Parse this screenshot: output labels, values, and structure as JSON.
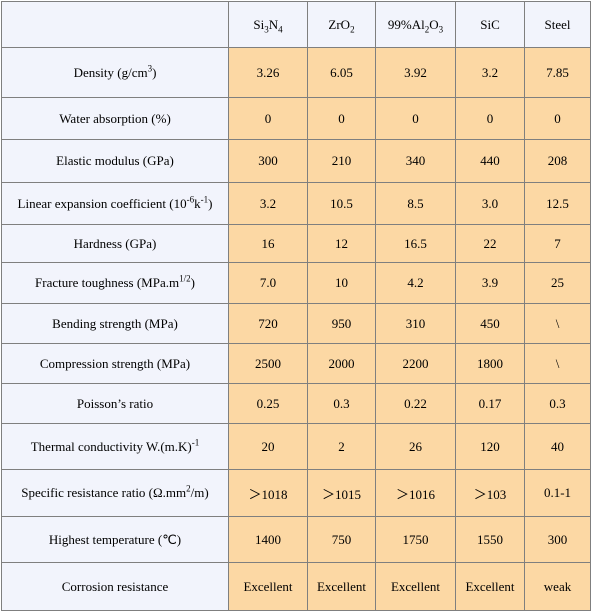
{
  "table": {
    "header": [
      [
        "Si",
        {
          "sub": "3"
        },
        "N",
        {
          "sub": "4"
        }
      ],
      [
        "ZrO",
        {
          "sub": "2"
        }
      ],
      [
        "99%Al",
        {
          "sub": "2"
        },
        "O",
        {
          "sub": "3"
        }
      ],
      "SiC",
      "Steel"
    ],
    "rows": [
      {
        "label": [
          "Density (g/cm",
          {
            "sup": "3"
          },
          ")"
        ],
        "cells": [
          "3.26",
          "6.05",
          "3.92",
          "3.2",
          "7.85"
        ]
      },
      {
        "label": "Water absorption (%)",
        "cells": [
          "0",
          "0",
          "0",
          "0",
          "0"
        ]
      },
      {
        "label": "Elastic modulus (GPa)",
        "cells": [
          "300",
          "210",
          "340",
          "440",
          "208"
        ]
      },
      {
        "label": [
          "Linear expansion coefficient (10",
          {
            "sup": "-6"
          },
          "k",
          {
            "sup": "-1"
          },
          ")"
        ],
        "cells": [
          "3.2",
          "10.5",
          "8.5",
          "3.0",
          "12.5"
        ]
      },
      {
        "label": "Hardness (GPa)",
        "cells": [
          "16",
          "12",
          "16.5",
          "22",
          "7"
        ]
      },
      {
        "label": [
          "Fracture toughness (MPa.m",
          {
            "sup": "1/2"
          },
          ")"
        ],
        "cells": [
          "7.0",
          "10",
          "4.2",
          "3.9",
          "25"
        ]
      },
      {
        "label": "Bending strength (MPa)",
        "cells": [
          "720",
          "950",
          "310",
          "450",
          "\\"
        ]
      },
      {
        "label": "Compression strength (MPa)",
        "cells": [
          "2500",
          "2000",
          "2200",
          "1800",
          "\\"
        ]
      },
      {
        "label": "Poisson’s ratio",
        "cells": [
          "0.25",
          "0.3",
          "0.22",
          "0.17",
          "0.3"
        ]
      },
      {
        "label": [
          "Thermal conductivity W.(m.K)",
          {
            "sup": "-1"
          }
        ],
        "cells": [
          "20",
          "2",
          "26",
          "120",
          "40"
        ]
      },
      {
        "label": [
          "Specific resistance ratio (Ω.mm",
          {
            "sup": "2"
          },
          "/m)"
        ],
        "cells": [
          "＞1018",
          "＞1015",
          "＞1016",
          "＞103",
          "0.1-1"
        ]
      },
      {
        "label": "Highest temperature (℃)",
        "cells": [
          "1400",
          "750",
          "1750",
          "1550",
          "300"
        ]
      },
      {
        "label": "Corrosion resistance",
        "cells": [
          "Excellent",
          "Excellent",
          "Excellent",
          "Excellent",
          "weak"
        ]
      }
    ]
  }
}
